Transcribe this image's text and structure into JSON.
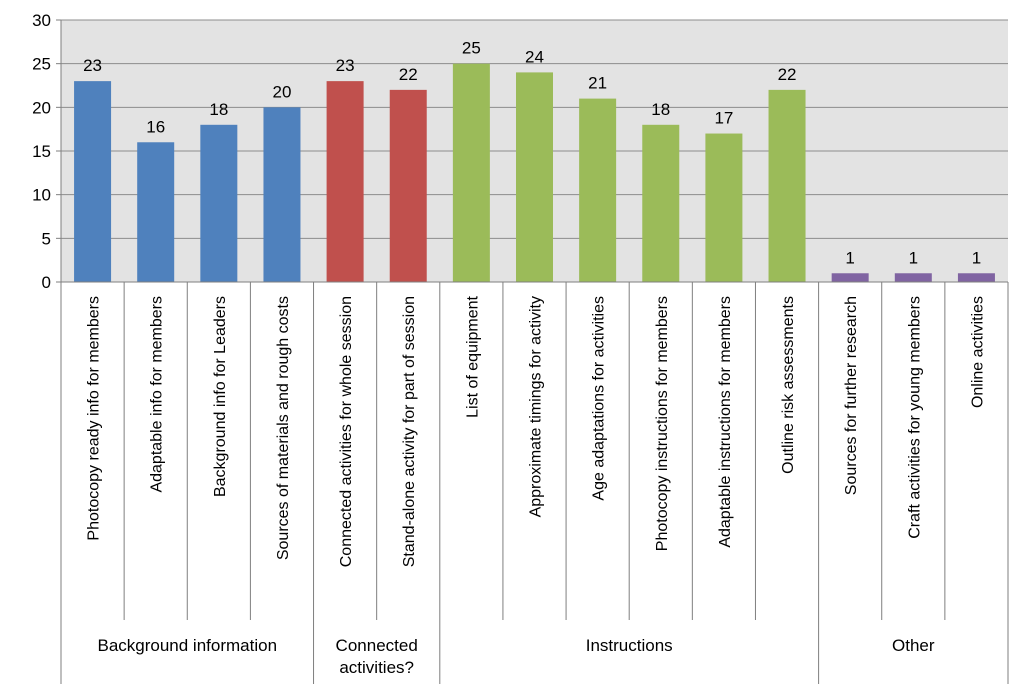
{
  "chart_data": {
    "type": "bar",
    "title": "",
    "xlabel": "",
    "ylabel": "",
    "ylim": [
      0,
      30
    ],
    "yticks": [
      0,
      5,
      10,
      15,
      20,
      25,
      30
    ],
    "grid": true,
    "legend": "none",
    "plot_background": "#e3e3e3",
    "categories": [
      "Photocopy ready info for members",
      "Adaptable info for members",
      "Background info for Leaders",
      "Sources of materials and rough costs",
      "Connected activities for whole session",
      "Stand-alone activity for part of session",
      "List of equipment",
      "Approximate timings for activity",
      "Age adaptations for activities",
      "Photocopy instructions for members",
      "Adaptable instructions for members",
      "Outline risk assessments",
      "Sources for further research",
      "Craft activities for young members",
      "Online activities"
    ],
    "values": [
      23,
      16,
      18,
      20,
      23,
      22,
      25,
      24,
      21,
      18,
      17,
      22,
      1,
      1,
      1
    ],
    "groups": [
      {
        "name": "Background information",
        "name_lines": [
          "Background information"
        ],
        "count": 4,
        "color": "#4f81bd"
      },
      {
        "name": "Connected activities?",
        "name_lines": [
          "Connected",
          "activities?"
        ],
        "count": 2,
        "color": "#c0504d"
      },
      {
        "name": "Instructions",
        "name_lines": [
          "Instructions"
        ],
        "count": 6,
        "color": "#9bbb59"
      },
      {
        "name": "Other",
        "name_lines": [
          "Other"
        ],
        "count": 3,
        "color": "#8064a2"
      }
    ]
  }
}
